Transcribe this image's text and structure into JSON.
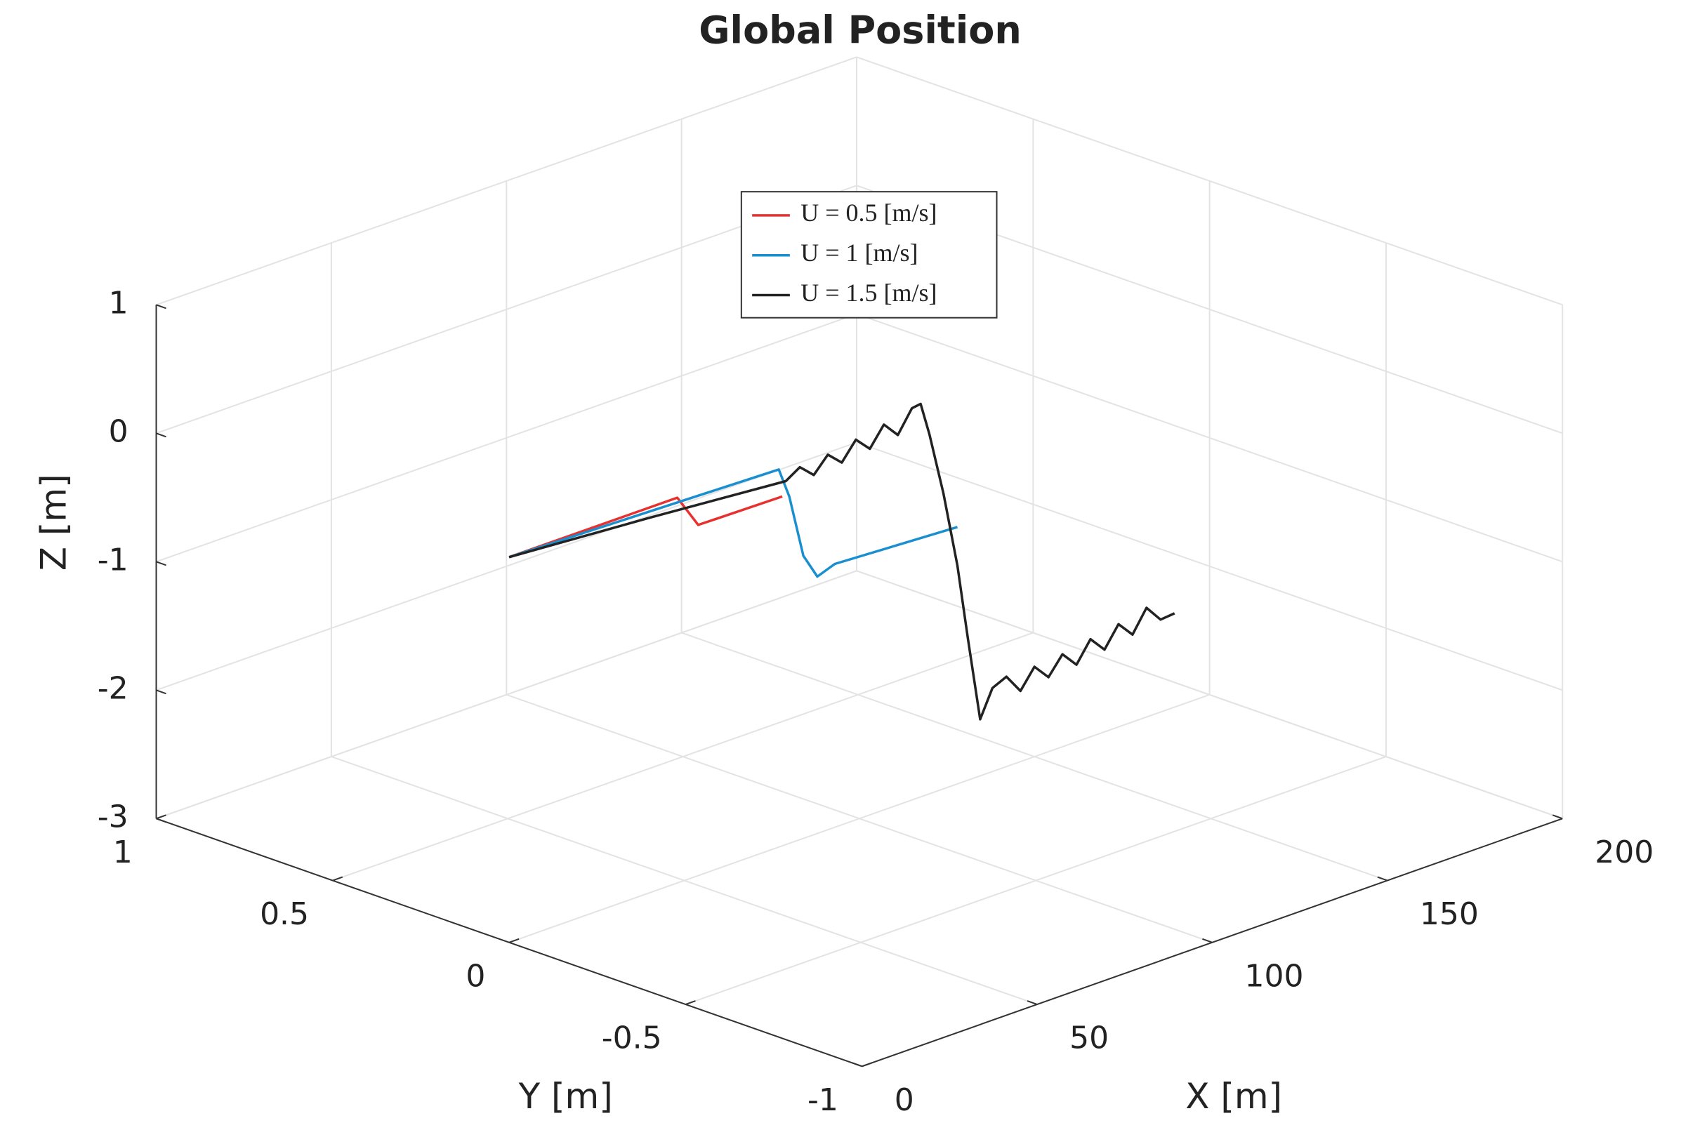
{
  "chart_data": {
    "type": "line3d",
    "title": "Global Position",
    "x_label": "X [m]",
    "y_label": "Y [m]",
    "z_label": "Z [m]",
    "xlim": [
      0,
      200
    ],
    "xticks": [
      0,
      50,
      100,
      150,
      200
    ],
    "ylim": [
      -1,
      1
    ],
    "yticks": [
      -1,
      -0.5,
      0,
      0.5,
      1
    ],
    "zlim": [
      -3,
      1
    ],
    "zticks": [
      -3,
      -2,
      -1,
      0,
      1
    ],
    "grid": true,
    "legend": "top-center",
    "series": [
      {
        "name": "U = 0.5 [m/s]",
        "color": "#e8302f",
        "y": 0,
        "x": [
          0,
          48,
          54,
          78
        ],
        "values": [
          0,
          0,
          -0.27,
          -0.28
        ]
      },
      {
        "name": "U = 1 [m/s]",
        "color": "#1a8fd0",
        "y": 0,
        "x": [
          0,
          77,
          80,
          84,
          88,
          93,
          128
        ],
        "values": [
          0,
          -0.06,
          -0.3,
          -0.8,
          -1.0,
          -0.95,
          -1.0
        ]
      },
      {
        "name": "U = 1.5 [m/s]",
        "color": "#222222",
        "y": 0,
        "x": [
          0,
          40,
          79,
          83,
          87,
          91,
          95,
          99,
          103,
          107,
          111,
          115,
          117.5,
          120,
          124,
          128,
          131,
          134.5,
          138,
          142,
          146,
          150,
          154,
          158,
          162,
          166,
          170,
          174,
          178,
          182,
          186,
          190
        ],
        "values": [
          0,
          -0.08,
          -0.17,
          -0.1,
          -0.2,
          -0.08,
          -0.18,
          -0.04,
          -0.15,
          0.0,
          -0.12,
          0.05,
          0.06,
          -0.2,
          -0.7,
          -1.3,
          -1.9,
          -2.56,
          -2.35,
          -2.3,
          -2.45,
          -2.3,
          -2.42,
          -2.28,
          -2.4,
          -2.24,
          -2.36,
          -2.2,
          -2.32,
          -2.15,
          -2.28,
          -2.27
        ]
      }
    ]
  }
}
